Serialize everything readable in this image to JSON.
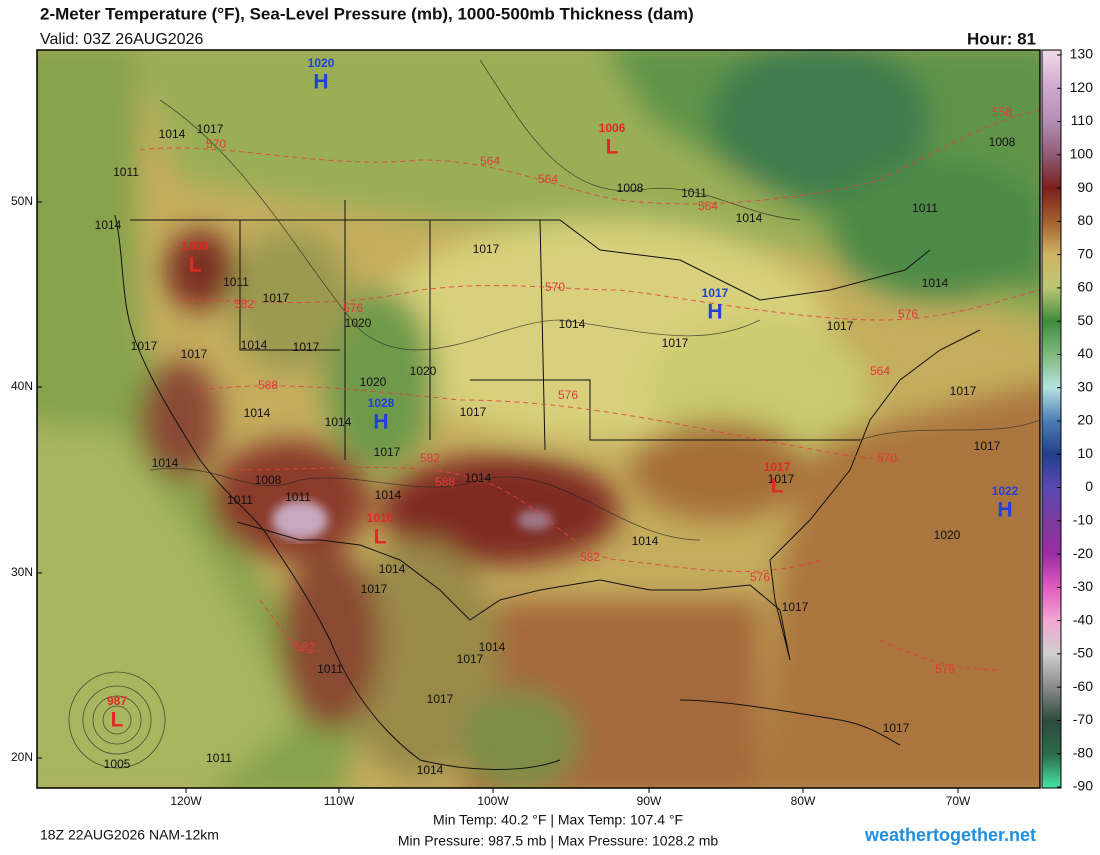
{
  "header": {
    "title": "2-Meter Temperature (°F), Sea-Level Pressure (mb), 1000-500mb Thickness (dam)",
    "valid": "Valid: 03Z 26AUG2026",
    "hour": "Hour: 81"
  },
  "map": {
    "lat_labels": [
      "50N",
      "40N",
      "30N",
      "20N"
    ],
    "lon_labels": [
      "120W",
      "110W",
      "100W",
      "90W",
      "80W",
      "70W"
    ],
    "pressure_centers": [
      {
        "type": "H",
        "value": 1020,
        "color": "#2040d8"
      },
      {
        "type": "L",
        "value": 1006,
        "color": "#e02828"
      },
      {
        "type": "L",
        "value": 1008,
        "color": "#e02828"
      },
      {
        "type": "H",
        "value": 1017,
        "color": "#2040d8"
      },
      {
        "type": "H",
        "value": 1028,
        "color": "#2040d8"
      },
      {
        "type": "L",
        "value": 1017,
        "color": "#e02828"
      },
      {
        "type": "H",
        "value": 1022,
        "color": "#2040d8"
      },
      {
        "type": "L",
        "value": 1016,
        "color": "#e02828"
      },
      {
        "type": "L",
        "value": 987,
        "color": "#e02828"
      }
    ],
    "isobar_labels": [
      1014,
      1017,
      1011,
      1014,
      1011,
      1017,
      1020,
      1017,
      1008,
      1011,
      1014,
      1011,
      1008,
      1014,
      1017,
      1014,
      1017,
      1017,
      1017,
      1014,
      1017,
      1020,
      1020,
      1014,
      1014,
      1017,
      1014,
      1017,
      1011,
      1008,
      1011,
      1014,
      1014,
      1014,
      1017,
      1017,
      1017,
      1020,
      1014,
      1017,
      1017,
      1014,
      1017,
      1011,
      1017,
      1017,
      1005,
      1011,
      1014
    ],
    "thickness_labels": [
      570,
      564,
      564,
      564,
      558,
      582,
      576,
      570,
      588,
      576,
      564,
      570,
      576,
      582,
      588,
      582,
      576,
      582,
      576
    ]
  },
  "colorbar": {
    "ticks": [
      130,
      120,
      110,
      100,
      90,
      80,
      70,
      60,
      50,
      40,
      30,
      20,
      10,
      0,
      -10,
      -20,
      -30,
      -40,
      -50,
      -60,
      -70,
      -80,
      -90
    ],
    "colors": [
      "#ecd6e6",
      "#cfa8cc",
      "#b48db4",
      "#8f5c74",
      "#7a1f1c",
      "#a4602e",
      "#cdb464",
      "#bcc774",
      "#3f8a3e",
      "#7fba7c",
      "#b6e2e0",
      "#4c7cb4",
      "#233f8a",
      "#5a48b2",
      "#7b3a9c",
      "#9a2ca2",
      "#e15cbf",
      "#f2a6d2",
      "#cfcfcf",
      "#8a8a8a",
      "#2f4b3c",
      "#2b6a4a",
      "#44e2a2"
    ]
  },
  "footer": {
    "run": "18Z 22AUG2026 NAM-12km",
    "temps": "Min Temp:  40.2 °F | Max Temp: 107.4 °F",
    "pressures": "Min Pressure: 987.5 mb | Max Pressure: 1028.2 mb",
    "brand": "weathertogether.net"
  }
}
